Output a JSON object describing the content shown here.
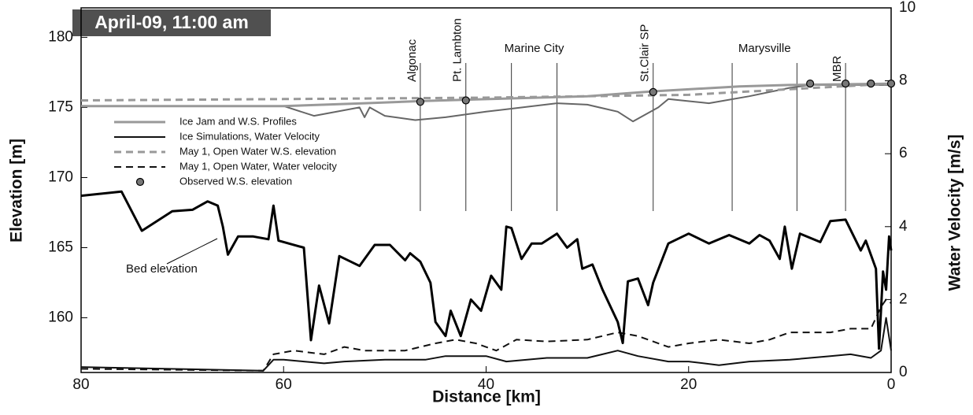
{
  "chart_data": {
    "type": "line",
    "title": "April-09, 11:00 am",
    "xlabel": "Distance [km]",
    "ylabel": "Elevation [m]",
    "y2label": "Water Velocity [m/s]",
    "xlim": [
      80,
      0
    ],
    "xticks": [
      80,
      60,
      40,
      20,
      0
    ],
    "ylim": [
      156.1,
      182.1
    ],
    "yticks": [
      160,
      165,
      170,
      175,
      180
    ],
    "y2lim": [
      0,
      10
    ],
    "y2ticks": [
      0,
      2,
      4,
      6,
      8,
      10
    ],
    "series": [
      {
        "name": "Ice Jam and W.S. Profiles",
        "color": "#999999",
        "dash": false,
        "width": 3,
        "x": [
          80,
          60,
          52,
          46.5,
          42,
          30,
          23.5,
          15,
          10,
          0
        ],
        "values": [
          175.1,
          175.1,
          175.3,
          175.45,
          175.55,
          175.8,
          176.15,
          176.5,
          176.6,
          176.7
        ]
      },
      {
        "name": "Ice Simulations, Water Velocity",
        "color": "#111111",
        "dash": false,
        "width": 2,
        "axis": "y2",
        "x": [
          80,
          62,
          61,
          60,
          58,
          56,
          54,
          50,
          46,
          44,
          40,
          38,
          34,
          30,
          27,
          25,
          22,
          20,
          17,
          14,
          10,
          6,
          4,
          2,
          1,
          0.5,
          0
        ],
        "values": [
          0.15,
          0.05,
          0.35,
          0.35,
          0.3,
          0.25,
          0.3,
          0.35,
          0.35,
          0.45,
          0.45,
          0.3,
          0.4,
          0.4,
          0.6,
          0.45,
          0.3,
          0.3,
          0.2,
          0.3,
          0.35,
          0.45,
          0.5,
          0.4,
          0.6,
          1.5,
          0.6
        ]
      },
      {
        "name": "May 1, Open Water W.S. elevation",
        "color": "#999999",
        "dash": true,
        "width": 3,
        "x": [
          80,
          60,
          40,
          20,
          10,
          0
        ],
        "values": [
          175.5,
          175.6,
          175.7,
          175.9,
          176.3,
          176.7
        ]
      },
      {
        "name": "May 1, Open Water, Water velocity",
        "color": "#111111",
        "dash": true,
        "width": 2,
        "axis": "y2",
        "x": [
          80,
          62,
          61,
          59,
          56,
          54,
          52,
          48,
          45,
          43,
          41,
          39,
          37,
          34,
          30,
          27,
          25,
          22,
          20,
          17,
          14,
          12,
          10,
          6,
          4,
          2,
          1,
          0.5,
          0
        ],
        "values": [
          0.1,
          0.05,
          0.5,
          0.6,
          0.5,
          0.7,
          0.6,
          0.6,
          0.8,
          0.9,
          0.8,
          0.6,
          0.9,
          0.85,
          0.9,
          1.1,
          1.0,
          0.7,
          0.8,
          0.9,
          0.8,
          0.9,
          1.1,
          1.1,
          1.2,
          1.2,
          1.8,
          2.0,
          1.9
        ]
      }
    ],
    "ice_underside": {
      "color": "#666666",
      "x": [
        80,
        60,
        57,
        52.5,
        52,
        51.5,
        50,
        47,
        44,
        40,
        33,
        30,
        27,
        25.5,
        23,
        22,
        18,
        14,
        10,
        8,
        0
      ],
      "values": [
        175.1,
        175.1,
        174.4,
        175.0,
        174.3,
        175.0,
        174.4,
        174.1,
        174.3,
        174.7,
        175.3,
        175.2,
        174.7,
        174.0,
        175.0,
        175.6,
        175.3,
        175.8,
        176.4,
        176.6,
        176.6
      ]
    },
    "observed": {
      "name": "Observed W.S. elevation",
      "color": "#777777",
      "x": [
        46.5,
        42,
        23.5,
        8,
        4.5,
        2,
        0
      ],
      "values": [
        175.4,
        175.5,
        176.1,
        176.7,
        176.7,
        176.7,
        176.7
      ]
    },
    "bed": {
      "name": "Bed elevation",
      "color": "#000000",
      "x": [
        80,
        76,
        74,
        71,
        69,
        67.5,
        66.5,
        66,
        65.5,
        64.5,
        63,
        61.5,
        61,
        60.5,
        58,
        57.3,
        56.5,
        55.5,
        54.5,
        52.5,
        51,
        49.5,
        48,
        47.5,
        46.5,
        45.5,
        45,
        44,
        43.5,
        42.5,
        41.5,
        40.5,
        39.5,
        38.5,
        38,
        37.5,
        36.5,
        35.5,
        34.5,
        33,
        32,
        31,
        30.5,
        29.5,
        28.5,
        27,
        26.5,
        26,
        25,
        24,
        23.5,
        22,
        20,
        18,
        16,
        14,
        13,
        12,
        11,
        10.5,
        9.8,
        9,
        7,
        6,
        4.5,
        3,
        2.5,
        1.5,
        1.2,
        0.8,
        0.5,
        0.2,
        0
      ],
      "values": [
        168.7,
        169.0,
        166.2,
        167.6,
        167.7,
        168.3,
        168.0,
        166.5,
        164.5,
        165.8,
        165.8,
        165.6,
        168.0,
        165.5,
        165.0,
        158.4,
        162.3,
        159.6,
        164.4,
        163.7,
        165.2,
        165.2,
        164.1,
        164.6,
        164.0,
        162.5,
        159.7,
        158.7,
        160.5,
        158.7,
        161.3,
        160.5,
        163.0,
        162.0,
        166.5,
        166.4,
        164.2,
        165.3,
        165.3,
        166.0,
        165.0,
        165.6,
        163.5,
        163.8,
        162.0,
        159.7,
        158.2,
        162.6,
        162.8,
        160.9,
        162.5,
        165.3,
        166.0,
        165.3,
        165.9,
        165.3,
        165.9,
        165.5,
        164.2,
        166.5,
        163.5,
        166.0,
        165.4,
        166.9,
        167.0,
        164.8,
        165.5,
        163.5,
        157.8,
        163.3,
        162.0,
        165.8,
        164.8
      ]
    },
    "locations": [
      {
        "label": "Algonac",
        "x": [
          46.5
        ],
        "rotated": true
      },
      {
        "label": "Pt. Lambton",
        "x": [
          42
        ],
        "rotated": true
      },
      {
        "label": "Marine City",
        "x": [
          37.5,
          33
        ],
        "rotated": false
      },
      {
        "label": "St.Clair SP",
        "x": [
          23.5
        ],
        "rotated": true
      },
      {
        "label": "Marysville",
        "x": [
          15.7,
          9.3
        ],
        "rotated": false
      },
      {
        "label": "MBR",
        "x": [
          4.5
        ],
        "rotated": true
      }
    ]
  }
}
